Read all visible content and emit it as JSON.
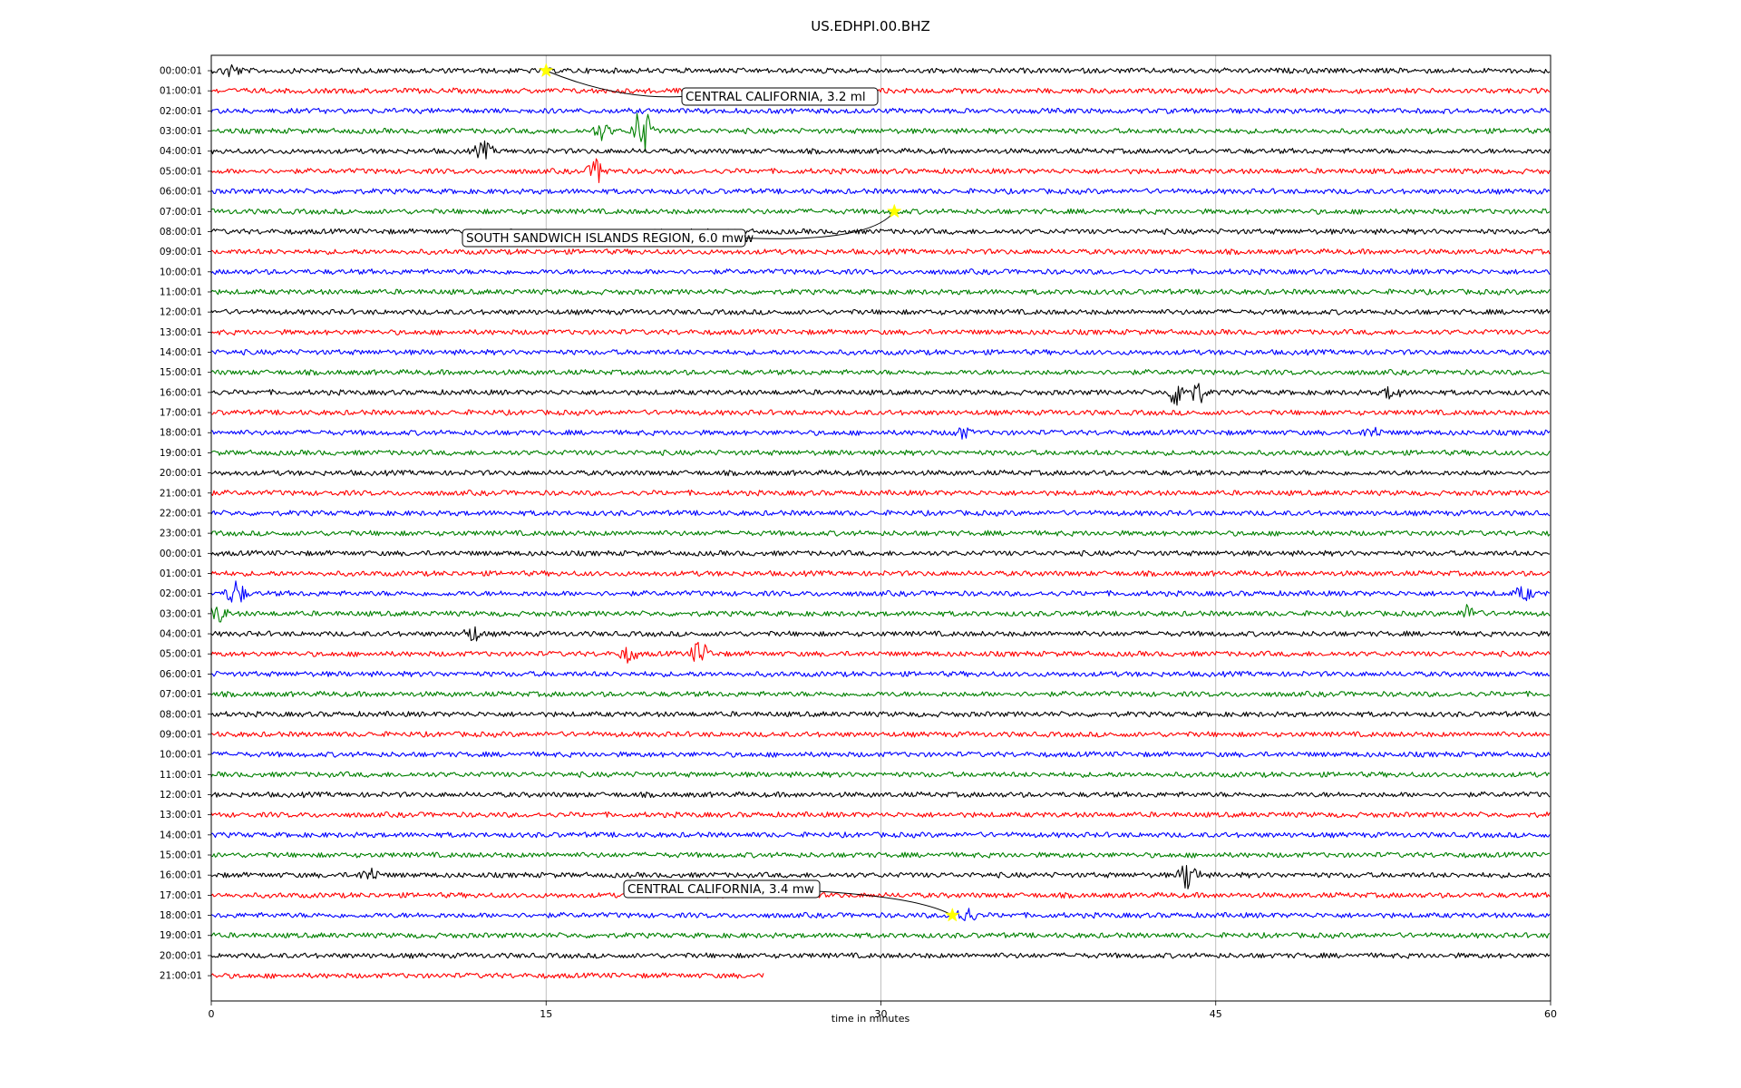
{
  "chart_data": {
    "type": "line",
    "title": "US.EDHPI.00.BHZ",
    "xlabel": "time in minutes",
    "ylabel": "",
    "xlim": [
      0,
      60
    ],
    "xticks": [
      0,
      15,
      30,
      45,
      60
    ],
    "grid": "vertical",
    "line_colors": [
      "#000000",
      "#ff0000",
      "#0000ff",
      "#008000"
    ],
    "rows": [
      "00:00:01",
      "01:00:01",
      "02:00:01",
      "03:00:01",
      "04:00:01",
      "05:00:01",
      "06:00:01",
      "07:00:01",
      "08:00:01",
      "09:00:01",
      "10:00:01",
      "11:00:01",
      "12:00:01",
      "13:00:01",
      "14:00:01",
      "15:00:01",
      "16:00:01",
      "17:00:01",
      "18:00:01",
      "19:00:01",
      "20:00:01",
      "21:00:01",
      "22:00:01",
      "23:00:01",
      "00:00:01",
      "01:00:01",
      "02:00:01",
      "03:00:01",
      "04:00:01",
      "05:00:01",
      "06:00:01",
      "07:00:01",
      "08:00:01",
      "09:00:01",
      "10:00:01",
      "11:00:01",
      "12:00:01",
      "13:00:01",
      "14:00:01",
      "15:00:01",
      "16:00:01",
      "17:00:01",
      "18:00:01",
      "19:00:01",
      "20:00:01",
      "21:00:01"
    ],
    "last_row_end_minute": 24.8,
    "bursts": [
      {
        "row": 0,
        "minute": 0.9,
        "amp": 1.2
      },
      {
        "row": 3,
        "minute": 17.5,
        "amp": 1.4
      },
      {
        "row": 3,
        "minute": 19.3,
        "amp": 5.0
      },
      {
        "row": 4,
        "minute": 12.2,
        "amp": 1.6
      },
      {
        "row": 5,
        "minute": 17.3,
        "amp": 2.2
      },
      {
        "row": 16,
        "minute": 43.3,
        "amp": 2.8
      },
      {
        "row": 16,
        "minute": 44.2,
        "amp": 2.0
      },
      {
        "row": 16,
        "minute": 52.9,
        "amp": 1.2
      },
      {
        "row": 18,
        "minute": 33.6,
        "amp": 1.0
      },
      {
        "row": 18,
        "minute": 52.0,
        "amp": 1.0
      },
      {
        "row": 26,
        "minute": 1.1,
        "amp": 2.5
      },
      {
        "row": 26,
        "minute": 58.8,
        "amp": 1.3
      },
      {
        "row": 27,
        "minute": 0.3,
        "amp": 1.6
      },
      {
        "row": 27,
        "minute": 56.4,
        "amp": 1.8
      },
      {
        "row": 28,
        "minute": 11.7,
        "amp": 1.4
      },
      {
        "row": 29,
        "minute": 18.7,
        "amp": 1.4
      },
      {
        "row": 29,
        "minute": 21.9,
        "amp": 2.4
      },
      {
        "row": 40,
        "minute": 7.1,
        "amp": 1.3
      },
      {
        "row": 40,
        "minute": 43.8,
        "amp": 3.2
      },
      {
        "row": 42,
        "minute": 33.8,
        "amp": 1.6
      }
    ],
    "events": [
      {
        "label": "CENTRAL CALIFORNIA, 3.2 ml",
        "row": 0,
        "minute": 15.0
      },
      {
        "label": "SOUTH SANDWICH ISLANDS REGION, 6.0 mww",
        "row": 7,
        "minute": 30.6
      },
      {
        "label": "CENTRAL CALIFORNIA, 3.4 mw",
        "row": 42,
        "minute": 33.2
      }
    ],
    "event_marker_color": "#ffff00"
  }
}
